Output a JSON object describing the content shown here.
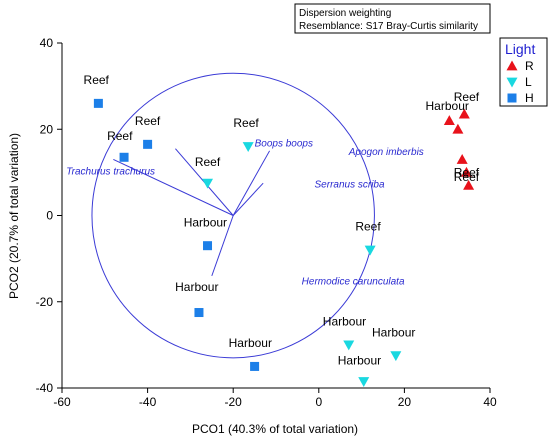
{
  "info_box": {
    "line1": "Dispersion weighting",
    "line2": "Resemblance: S17 Bray-Curtis similarity"
  },
  "legend": {
    "title": "Light",
    "entries": [
      {
        "label": "R",
        "shape": "triangle-up",
        "color": "#e8121b"
      },
      {
        "label": "L",
        "shape": "triangle-down",
        "color": "#19d8e0"
      },
      {
        "label": "H",
        "shape": "square",
        "color": "#1c7fe8"
      }
    ]
  },
  "chart_data": {
    "type": "scatter",
    "xlabel": "PCO1 (40.3% of total variation)",
    "ylabel": "PCO2 (20.7% of total variation)",
    "xlim": [
      -60,
      40
    ],
    "ylim": [
      -40,
      40
    ],
    "xticks": [
      -60,
      -40,
      -20,
      0,
      20,
      40
    ],
    "yticks": [
      -40,
      -20,
      0,
      20,
      40
    ],
    "series": [
      {
        "name": "R",
        "shape": "triangle-up",
        "color": "#e8121b",
        "points": [
          {
            "x": 30.5,
            "y": 22.0
          },
          {
            "x": 34.0,
            "y": 23.5
          },
          {
            "x": 32.5,
            "y": 20.0
          },
          {
            "x": 33.5,
            "y": 13.0
          },
          {
            "x": 34.5,
            "y": 10.0
          },
          {
            "x": 35.0,
            "y": 7.0
          }
        ]
      },
      {
        "name": "L",
        "shape": "triangle-down",
        "color": "#19d8e0",
        "points": [
          {
            "x": -16.5,
            "y": 16.0
          },
          {
            "x": -26.0,
            "y": 7.5
          },
          {
            "x": 12.0,
            "y": -8.0
          },
          {
            "x": 7.0,
            "y": -30.0
          },
          {
            "x": 18.0,
            "y": -32.5
          },
          {
            "x": 10.5,
            "y": -38.5
          }
        ]
      },
      {
        "name": "H",
        "shape": "square",
        "color": "#1c7fe8",
        "points": [
          {
            "x": -51.5,
            "y": 26.0
          },
          {
            "x": -45.5,
            "y": 13.5
          },
          {
            "x": -40.0,
            "y": 16.5
          },
          {
            "x": -26.0,
            "y": -7.0
          },
          {
            "x": -28.0,
            "y": -22.5
          },
          {
            "x": -15.0,
            "y": -35.0
          }
        ]
      }
    ],
    "point_labels": [
      {
        "text": "Reef",
        "x": -52.0,
        "y": 30.5
      },
      {
        "text": "Reef",
        "x": -46.5,
        "y": 17.5
      },
      {
        "text": "Reef",
        "x": -40.0,
        "y": 21.0
      },
      {
        "text": "Reef",
        "x": -17.0,
        "y": 20.5
      },
      {
        "text": "Reef",
        "x": -26.0,
        "y": 11.5
      },
      {
        "text": "Harbour",
        "x": -26.5,
        "y": -2.5
      },
      {
        "text": "Harbour",
        "x": -28.5,
        "y": -17.5
      },
      {
        "text": "Harbour",
        "x": -16.0,
        "y": -30.5
      },
      {
        "text": "Reef",
        "x": 11.5,
        "y": -3.5
      },
      {
        "text": "Harbour",
        "x": 6.0,
        "y": -25.5
      },
      {
        "text": "Harbour",
        "x": 17.5,
        "y": -28.0
      },
      {
        "text": "Harbour",
        "x": 9.5,
        "y": -34.5
      },
      {
        "text": "Reef",
        "x": 34.5,
        "y": 26.5
      },
      {
        "text": "Harbour",
        "x": 30.0,
        "y": 24.5
      },
      {
        "text": "Reef",
        "x": 34.5,
        "y": 9.0
      },
      {
        "text": "Reef",
        "x": 34.5,
        "y": 8.0
      }
    ],
    "vectors": [
      {
        "name": "Trachurus trachurus",
        "x": -28.0,
        "y": 13.0,
        "label_x": -59.0,
        "label_y": 9.5
      },
      {
        "name": "Boops boops",
        "x": -13.5,
        "y": 15.5,
        "label_x": -15.0,
        "label_y": 16.0
      },
      {
        "name": "Apogon imberbis",
        "x": 8.5,
        "y": 15.0,
        "label_x": 7.0,
        "label_y": 14.0
      },
      {
        "name": "Serranus scriba",
        "x": 7.0,
        "y": 7.5,
        "label_x": -1.0,
        "label_y": 6.5
      },
      {
        "name": "Hermodice carunculata",
        "x": -5.0,
        "y": -14.0,
        "label_x": -4.0,
        "label_y": -16.0
      }
    ],
    "origin": {
      "x": -20.0,
      "y": 0.0
    },
    "circle_radius": 33.0
  }
}
